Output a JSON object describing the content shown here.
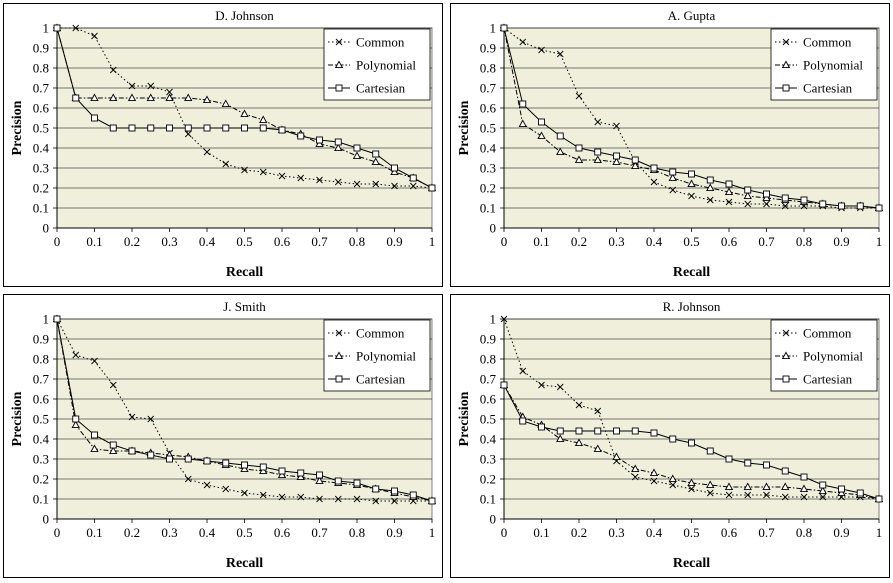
{
  "chart_data": [
    {
      "type": "line",
      "title": "D. Johnson",
      "xlabel": "Recall",
      "ylabel": "Precision",
      "xlim": [
        0,
        1
      ],
      "ylim": [
        0,
        1
      ],
      "x_ticks": [
        "0",
        "0.1",
        "0.2",
        "0.3",
        "0.4",
        "0.5",
        "0.6",
        "0.7",
        "0.8",
        "0.9",
        "1"
      ],
      "y_ticks": [
        "0",
        "0.1",
        "0.2",
        "0.3",
        "0.4",
        "0.5",
        "0.6",
        "0.7",
        "0.8",
        "0.9",
        "1"
      ],
      "grid": "horizontal",
      "legend": "top-right",
      "x": [
        0,
        0.05,
        0.1,
        0.15,
        0.2,
        0.25,
        0.3,
        0.35,
        0.4,
        0.45,
        0.5,
        0.55,
        0.6,
        0.65,
        0.7,
        0.75,
        0.8,
        0.85,
        0.9,
        0.95,
        1
      ],
      "series": [
        {
          "name": "Common",
          "marker": "x",
          "dash": "dotted",
          "values": [
            1,
            1,
            0.96,
            0.79,
            0.71,
            0.71,
            0.68,
            0.47,
            0.38,
            0.32,
            0.29,
            0.28,
            0.26,
            0.25,
            0.24,
            0.23,
            0.22,
            0.22,
            0.21,
            0.21,
            0.2
          ]
        },
        {
          "name": "Polynomial",
          "marker": "triangle",
          "dash": "dashdot",
          "values": [
            1,
            0.65,
            0.65,
            0.65,
            0.65,
            0.65,
            0.65,
            0.65,
            0.64,
            0.62,
            0.57,
            0.54,
            0.49,
            0.47,
            0.42,
            0.4,
            0.36,
            0.33,
            0.28,
            0.25,
            0.2
          ]
        },
        {
          "name": "Cartesian",
          "marker": "square",
          "dash": "solid",
          "values": [
            1,
            0.65,
            0.55,
            0.5,
            0.5,
            0.5,
            0.5,
            0.5,
            0.5,
            0.5,
            0.5,
            0.5,
            0.49,
            0.46,
            0.44,
            0.43,
            0.4,
            0.37,
            0.3,
            0.25,
            0.2
          ]
        }
      ]
    },
    {
      "type": "line",
      "title": "A. Gupta",
      "xlabel": "Recall",
      "ylabel": "Precision",
      "xlim": [
        0,
        1
      ],
      "ylim": [
        0,
        1
      ],
      "x_ticks": [
        "0",
        "0.1",
        "0.2",
        "0.3",
        "0.4",
        "0.5",
        "0.6",
        "0.7",
        "0.8",
        "0.9",
        "1"
      ],
      "y_ticks": [
        "0",
        "0.1",
        "0.2",
        "0.3",
        "0.4",
        "0.5",
        "0.6",
        "0.7",
        "0.8",
        "0.9",
        "1"
      ],
      "grid": "horizontal",
      "legend": "top-right",
      "x": [
        0,
        0.05,
        0.1,
        0.15,
        0.2,
        0.25,
        0.3,
        0.35,
        0.4,
        0.45,
        0.5,
        0.55,
        0.6,
        0.65,
        0.7,
        0.75,
        0.8,
        0.85,
        0.9,
        0.95,
        1
      ],
      "series": [
        {
          "name": "Common",
          "marker": "x",
          "dash": "dotted",
          "values": [
            1,
            0.93,
            0.89,
            0.87,
            0.66,
            0.53,
            0.51,
            0.33,
            0.23,
            0.19,
            0.16,
            0.14,
            0.13,
            0.12,
            0.12,
            0.11,
            0.11,
            0.11,
            0.1,
            0.1,
            0.1
          ]
        },
        {
          "name": "Polynomial",
          "marker": "triangle",
          "dash": "dashdot",
          "values": [
            1,
            0.52,
            0.46,
            0.38,
            0.34,
            0.34,
            0.33,
            0.31,
            0.29,
            0.25,
            0.22,
            0.2,
            0.18,
            0.16,
            0.15,
            0.14,
            0.13,
            0.12,
            0.11,
            0.11,
            0.1
          ]
        },
        {
          "name": "Cartesian",
          "marker": "square",
          "dash": "solid",
          "values": [
            1,
            0.62,
            0.53,
            0.46,
            0.4,
            0.38,
            0.36,
            0.34,
            0.3,
            0.28,
            0.27,
            0.24,
            0.22,
            0.19,
            0.17,
            0.15,
            0.14,
            0.12,
            0.11,
            0.11,
            0.1
          ]
        }
      ]
    },
    {
      "type": "line",
      "title": "J. Smith",
      "xlabel": "Recall",
      "ylabel": "Precision",
      "xlim": [
        0,
        1
      ],
      "ylim": [
        0,
        1
      ],
      "x_ticks": [
        "0",
        "0.1",
        "0.2",
        "0.3",
        "0.4",
        "0.5",
        "0.6",
        "0.7",
        "0.8",
        "0.9",
        "1"
      ],
      "y_ticks": [
        "0",
        "0.1",
        "0.2",
        "0.3",
        "0.4",
        "0.5",
        "0.6",
        "0.7",
        "0.8",
        "0.9",
        "1"
      ],
      "grid": "horizontal",
      "legend": "top-right",
      "x": [
        0,
        0.05,
        0.1,
        0.15,
        0.2,
        0.25,
        0.3,
        0.35,
        0.4,
        0.45,
        0.5,
        0.55,
        0.6,
        0.65,
        0.7,
        0.75,
        0.8,
        0.85,
        0.9,
        0.95,
        1
      ],
      "series": [
        {
          "name": "Common",
          "marker": "x",
          "dash": "dotted",
          "values": [
            1,
            0.82,
            0.79,
            0.67,
            0.51,
            0.5,
            0.33,
            0.2,
            0.17,
            0.15,
            0.13,
            0.12,
            0.11,
            0.11,
            0.1,
            0.1,
            0.1,
            0.09,
            0.09,
            0.09,
            0.09
          ]
        },
        {
          "name": "Polynomial",
          "marker": "triangle",
          "dash": "dashdot",
          "values": [
            1,
            0.47,
            0.35,
            0.34,
            0.34,
            0.33,
            0.32,
            0.31,
            0.29,
            0.27,
            0.25,
            0.24,
            0.22,
            0.21,
            0.19,
            0.18,
            0.17,
            0.15,
            0.13,
            0.11,
            0.09
          ]
        },
        {
          "name": "Cartesian",
          "marker": "square",
          "dash": "solid",
          "values": [
            1,
            0.5,
            0.42,
            0.37,
            0.34,
            0.32,
            0.3,
            0.3,
            0.29,
            0.28,
            0.27,
            0.26,
            0.24,
            0.23,
            0.22,
            0.19,
            0.18,
            0.15,
            0.14,
            0.12,
            0.09
          ]
        }
      ]
    },
    {
      "type": "line",
      "title": "R. Johnson",
      "xlabel": "Recall",
      "ylabel": "Precision",
      "xlim": [
        0,
        1
      ],
      "ylim": [
        0,
        1
      ],
      "x_ticks": [
        "0",
        "0.1",
        "0.2",
        "0.3",
        "0.4",
        "0.5",
        "0.6",
        "0.7",
        "0.8",
        "0.9",
        "1"
      ],
      "y_ticks": [
        "0",
        "0.1",
        "0.2",
        "0.3",
        "0.4",
        "0.5",
        "0.6",
        "0.7",
        "0.8",
        "0.9",
        "1"
      ],
      "grid": "horizontal",
      "legend": "top-right",
      "x": [
        0,
        0.05,
        0.1,
        0.15,
        0.2,
        0.25,
        0.3,
        0.35,
        0.4,
        0.45,
        0.5,
        0.55,
        0.6,
        0.65,
        0.7,
        0.75,
        0.8,
        0.85,
        0.9,
        0.95,
        1
      ],
      "series": [
        {
          "name": "Common",
          "marker": "x",
          "dash": "dotted",
          "values": [
            1,
            0.74,
            0.67,
            0.66,
            0.57,
            0.54,
            0.29,
            0.21,
            0.19,
            0.17,
            0.15,
            0.13,
            0.12,
            0.12,
            0.12,
            0.11,
            0.11,
            0.11,
            0.11,
            0.11,
            0.1
          ]
        },
        {
          "name": "Polynomial",
          "marker": "triangle",
          "dash": "dashdot",
          "values": [
            0.67,
            0.51,
            0.47,
            0.4,
            0.38,
            0.35,
            0.31,
            0.25,
            0.23,
            0.2,
            0.18,
            0.17,
            0.16,
            0.16,
            0.16,
            0.16,
            0.15,
            0.14,
            0.13,
            0.12,
            0.1
          ]
        },
        {
          "name": "Cartesian",
          "marker": "square",
          "dash": "solid",
          "values": [
            0.67,
            0.49,
            0.46,
            0.44,
            0.44,
            0.44,
            0.44,
            0.44,
            0.43,
            0.4,
            0.38,
            0.34,
            0.3,
            0.28,
            0.27,
            0.24,
            0.21,
            0.17,
            0.15,
            0.13,
            0.1
          ]
        }
      ]
    }
  ]
}
